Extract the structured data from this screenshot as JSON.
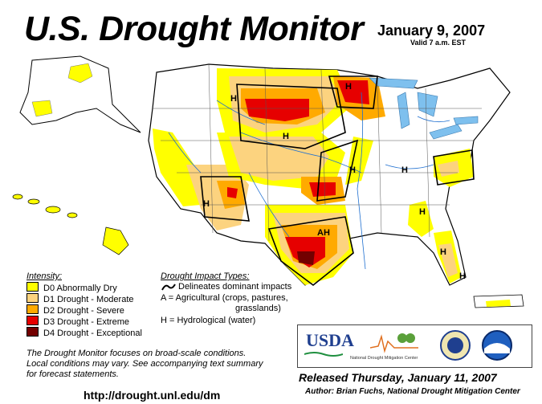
{
  "header": {
    "title": "U.S. Drought Monitor",
    "date": "January 9, 2007",
    "valid": "Valid 7 a.m. EST"
  },
  "legend": {
    "intensity_title": "Intensity:",
    "items": [
      {
        "label": "D0 Abnormally Dry",
        "color": "#ffff00"
      },
      {
        "label": "D1 Drought - Moderate",
        "color": "#fcd37f"
      },
      {
        "label": "D2 Drought - Severe",
        "color": "#ffaa00"
      },
      {
        "label": "D3 Drought - Extreme",
        "color": "#e60000"
      },
      {
        "label": "D4 Drought - Exceptional",
        "color": "#730000"
      }
    ],
    "impact_title": "Drought Impact Types:",
    "impact_delineates": "Delineates dominant impacts",
    "impact_a_line1": "A = Agricultural (crops, pastures,",
    "impact_a_line2": "grasslands)",
    "impact_h": "H = Hydrological (water)"
  },
  "map": {
    "impact_labels": [
      "H",
      "H",
      "H",
      "H",
      "H",
      "AH",
      "H",
      "H",
      "H",
      "H"
    ]
  },
  "footer": {
    "note_line1": "The Drought Monitor focuses on broad-scale conditions.",
    "note_line2": "Local conditions may vary. See accompanying text summary",
    "note_line3": "for forecast statements.",
    "url": "http://drought.unl.edu/dm",
    "released": "Released Thursday, January 11, 2007",
    "author": "Author: Brian Fuchs, National Drought Mitigation Center",
    "logo_usda": "USDA",
    "logo_ndmc": "National Drought Mitigation Center"
  }
}
